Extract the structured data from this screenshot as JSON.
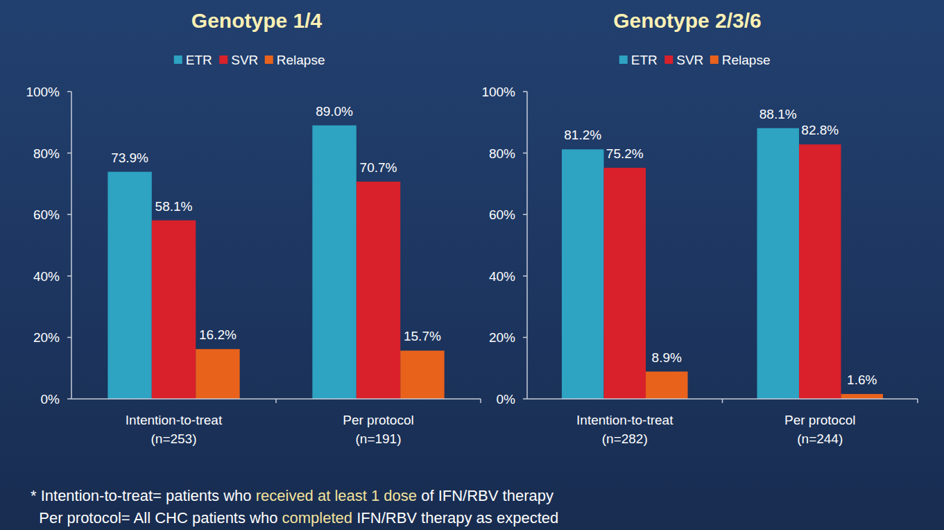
{
  "chart_data": [
    {
      "type": "bar",
      "title": "Genotype 1/4",
      "categories": [
        "Intention-to-treat\n(n=253)",
        "Per protocol\n(n=191)"
      ],
      "series": [
        {
          "name": "ETR",
          "color": "#2ea3c2",
          "values": [
            73.9,
            89.0
          ],
          "value_labels": [
            "73.9%",
            "89.0%"
          ]
        },
        {
          "name": "SVR",
          "color": "#d8212b",
          "values": [
            58.1,
            70.7
          ],
          "value_labels": [
            "58.1%",
            "70.7%"
          ]
        },
        {
          "name": "Relapse",
          "color": "#e8621c",
          "values": [
            16.2,
            15.7
          ],
          "value_labels": [
            "16.2%",
            "15.7%"
          ]
        }
      ],
      "ylim": [
        0,
        100
      ],
      "yticks": [
        {
          "value": 0,
          "label": "0%"
        },
        {
          "value": 20,
          "label": "20%"
        },
        {
          "value": 40,
          "label": "40%"
        },
        {
          "value": 60,
          "label": "60%"
        },
        {
          "value": 80,
          "label": "80%"
        },
        {
          "value": 100,
          "label": "100%"
        }
      ],
      "grid": false,
      "legend": "top",
      "data_labels": true
    },
    {
      "type": "bar",
      "title": "Genotype 2/3/6",
      "categories": [
        "Intention-to-treat\n(n=282)",
        "Per protocol\n(n=244)"
      ],
      "series": [
        {
          "name": "ETR",
          "color": "#2ea3c2",
          "values": [
            81.2,
            88.1
          ],
          "value_labels": [
            "81.2%",
            "88.1%"
          ]
        },
        {
          "name": "SVR",
          "color": "#d8212b",
          "values": [
            75.2,
            82.8
          ],
          "value_labels": [
            "75.2%",
            "82.8%"
          ]
        },
        {
          "name": "Relapse",
          "color": "#e8621c",
          "values": [
            8.9,
            1.6
          ],
          "value_labels": [
            "8.9%",
            "1.6%"
          ]
        }
      ],
      "ylim": [
        0,
        100
      ],
      "yticks": [
        {
          "value": 0,
          "label": "0%"
        },
        {
          "value": 20,
          "label": "20%"
        },
        {
          "value": 40,
          "label": "40%"
        },
        {
          "value": 60,
          "label": "60%"
        },
        {
          "value": 80,
          "label": "80%"
        },
        {
          "value": 100,
          "label": "100%"
        }
      ],
      "grid": false,
      "legend": "top",
      "data_labels": true
    }
  ],
  "notes": {
    "lines": [
      [
        {
          "text": "* Intention-to-treat= patients who ",
          "emphasis": false
        },
        {
          "text": "received at least 1 dose",
          "emphasis": true
        },
        {
          "text": " of IFN/RBV therapy",
          "emphasis": false
        }
      ],
      [
        {
          "text": "  Per protocol= All CHC patients who ",
          "emphasis": false
        },
        {
          "text": "completed",
          "emphasis": true
        },
        {
          "text": " IFN/RBV therapy as expected",
          "emphasis": false
        }
      ]
    ]
  }
}
